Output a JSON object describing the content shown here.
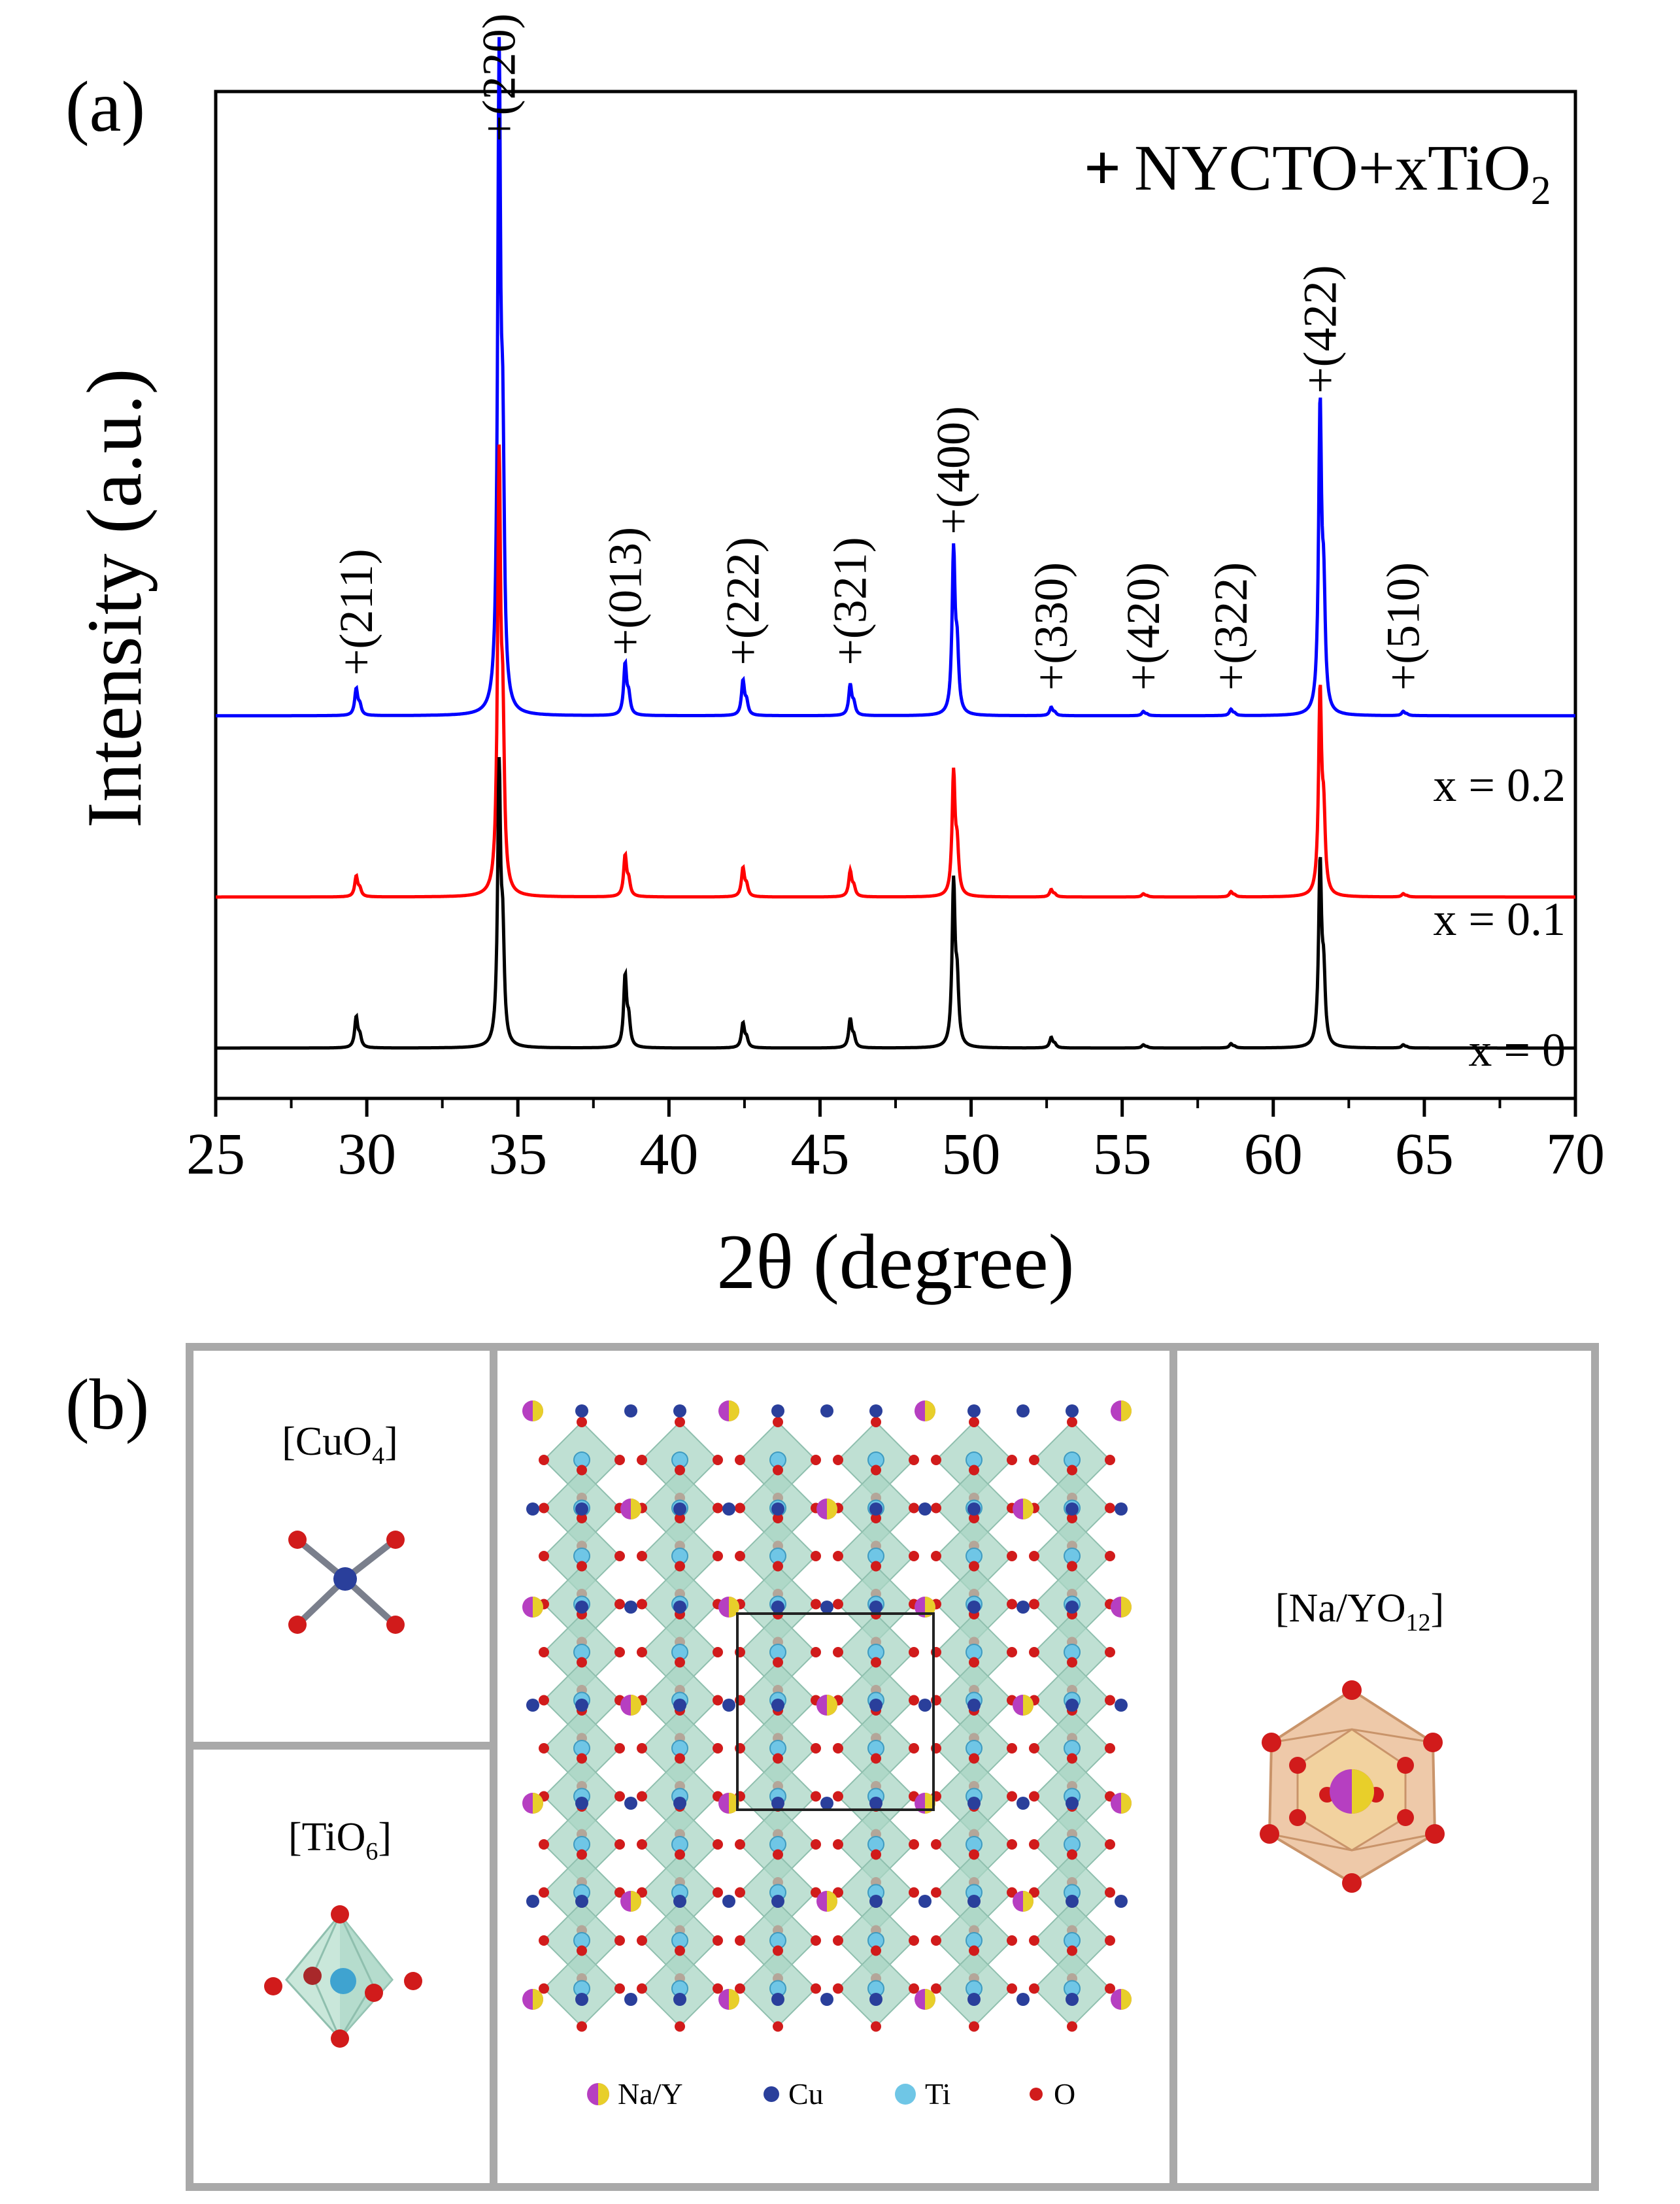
{
  "panel_a": {
    "label": "(a)",
    "legend": {
      "marker": "+",
      "text": "NYCTO+xTiO",
      "subscript": "2"
    }
  },
  "panel_b": {
    "label": "(b)",
    "cuo4": {
      "text": "[CuO",
      "sub": "4",
      "close": "]"
    },
    "tio6": {
      "text": "[TiO",
      "sub": "6",
      "close": "]"
    },
    "nayo12": {
      "text": "[Na/YO",
      "sub": "12",
      "close": "]"
    },
    "atom_legend": [
      {
        "label": "Na/Y",
        "color": "#b63fc1",
        "color2": "#e8cf2a"
      },
      {
        "label": "Cu",
        "color": "#2a3f9b"
      },
      {
        "label": "Ti",
        "color": "#6fc6e6"
      },
      {
        "label": "O",
        "color": "#d11b1b"
      }
    ]
  },
  "chart_data": {
    "type": "line",
    "title": "",
    "xlabel": "2θ (degree)",
    "ylabel": "Intensity (a.u.)",
    "xlim": [
      25,
      70
    ],
    "xticks": [
      25,
      30,
      35,
      40,
      45,
      50,
      55,
      60,
      65,
      70
    ],
    "ylim": [
      0,
      1
    ],
    "grid": false,
    "legend": "top-right",
    "series": [
      {
        "name": "x = 0.2",
        "color": "#0000ff",
        "baseline": 0.38,
        "peaks": [
          {
            "x": 29.65,
            "h": 0.026
          },
          {
            "x": 34.38,
            "h": 0.63
          },
          {
            "x": 38.55,
            "h": 0.05
          },
          {
            "x": 42.45,
            "h": 0.034
          },
          {
            "x": 46.0,
            "h": 0.03
          },
          {
            "x": 49.42,
            "h": 0.16
          },
          {
            "x": 52.65,
            "h": 0.008
          },
          {
            "x": 55.7,
            "h": 0.004
          },
          {
            "x": 58.6,
            "h": 0.006
          },
          {
            "x": 61.55,
            "h": 0.3
          },
          {
            "x": 64.3,
            "h": 0.004
          }
        ]
      },
      {
        "name": "x = 0.1",
        "color": "#ff0000",
        "baseline": 0.2,
        "peaks": [
          {
            "x": 29.65,
            "h": 0.02
          },
          {
            "x": 34.38,
            "h": 0.42
          },
          {
            "x": 38.55,
            "h": 0.04
          },
          {
            "x": 42.45,
            "h": 0.028
          },
          {
            "x": 46.0,
            "h": 0.025
          },
          {
            "x": 49.42,
            "h": 0.12
          },
          {
            "x": 52.65,
            "h": 0.007
          },
          {
            "x": 55.7,
            "h": 0.003
          },
          {
            "x": 58.6,
            "h": 0.005
          },
          {
            "x": 61.55,
            "h": 0.2
          },
          {
            "x": 64.3,
            "h": 0.003
          }
        ]
      },
      {
        "name": "x = 0",
        "color": "#000000",
        "baseline": 0.05,
        "peaks": [
          {
            "x": 29.65,
            "h": 0.03
          },
          {
            "x": 34.38,
            "h": 0.27
          },
          {
            "x": 38.55,
            "h": 0.07
          },
          {
            "x": 42.45,
            "h": 0.024
          },
          {
            "x": 46.0,
            "h": 0.028
          },
          {
            "x": 49.42,
            "h": 0.16
          },
          {
            "x": 52.65,
            "h": 0.01
          },
          {
            "x": 55.7,
            "h": 0.003
          },
          {
            "x": 58.6,
            "h": 0.004
          },
          {
            "x": 61.55,
            "h": 0.18
          },
          {
            "x": 64.3,
            "h": 0.003
          }
        ]
      }
    ],
    "series_labels": [
      "x = 0.2",
      "x = 0.1",
      "x = 0"
    ],
    "annotations": [
      {
        "text": "+(211)",
        "x": 29.65,
        "y": 0.42
      },
      {
        "text": "+(220)",
        "x": 34.38,
        "y": 0.95
      },
      {
        "text": "+(013)",
        "x": 38.55,
        "y": 0.44
      },
      {
        "text": "+(222)",
        "x": 42.45,
        "y": 0.43
      },
      {
        "text": "+(321)",
        "x": 46.0,
        "y": 0.43
      },
      {
        "text": "+(400)",
        "x": 49.42,
        "y": 0.56
      },
      {
        "text": "+(330)",
        "x": 52.65,
        "y": 0.405
      },
      {
        "text": "+(420)",
        "x": 55.7,
        "y": 0.405
      },
      {
        "text": "+(322)",
        "x": 58.6,
        "y": 0.405
      },
      {
        "text": "+(422)",
        "x": 61.55,
        "y": 0.7
      },
      {
        "text": "+(510)",
        "x": 64.3,
        "y": 0.405
      }
    ]
  }
}
